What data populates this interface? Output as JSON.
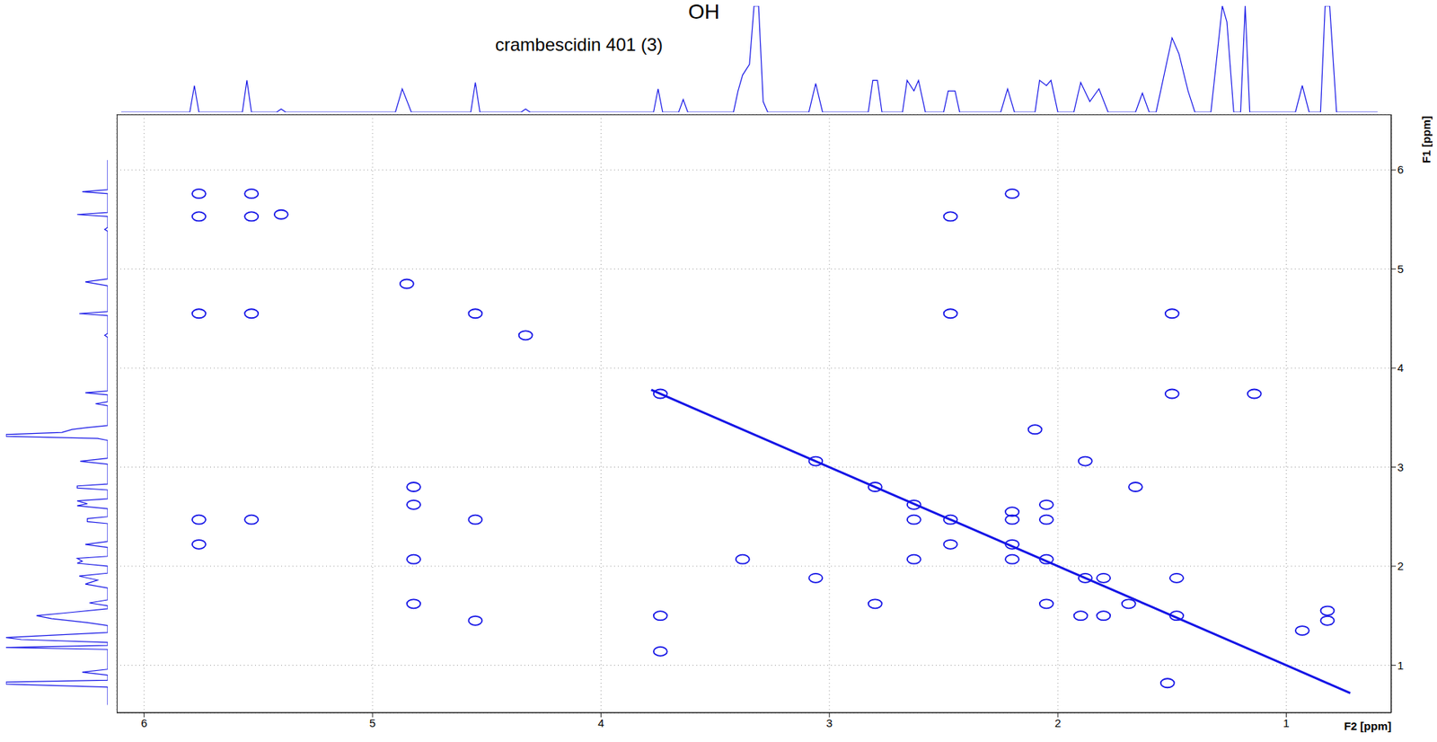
{
  "chart_data": [
    {
      "type": "scatter",
      "title": "crambescidin 401 (3)",
      "annotations": [
        "OH"
      ],
      "x_label": "F2 [ppm]",
      "y_label": "F1 [ppm]",
      "xlim": [
        6.12,
        0.54
      ],
      "ylim": [
        6.56,
        0.52
      ],
      "xticks": [
        6,
        5,
        4,
        3,
        2,
        1
      ],
      "yticks": [
        1,
        2,
        3,
        4,
        5,
        6
      ],
      "grid": true,
      "series": [
        {
          "type": "scatter",
          "marker": "ellipse",
          "color": "#1414e6",
          "x": [
            5.76,
            5.76,
            5.53,
            5.76,
            5.53,
            5.76,
            5.53,
            5.76,
            5.53,
            5.4,
            4.82,
            4.82,
            4.82,
            4.82,
            4.85,
            4.55,
            4.55,
            4.55,
            4.33,
            3.74,
            3.74,
            3.74,
            3.38,
            3.06,
            3.06,
            2.8,
            2.8,
            2.63,
            2.63,
            2.63,
            2.47,
            2.47,
            2.47,
            2.47,
            2.2,
            2.2,
            2.2,
            2.2,
            2.2,
            2.05,
            2.05,
            2.05,
            2.05,
            2.1,
            1.9,
            1.88,
            1.8,
            1.8,
            1.88,
            1.69,
            1.66,
            1.52,
            1.48,
            1.48,
            1.5,
            1.5,
            1.14,
            0.93,
            0.82,
            0.82
          ],
          "values": [
            2.22,
            2.47,
            2.47,
            4.55,
            4.55,
            5.53,
            5.53,
            5.76,
            5.76,
            5.55,
            1.62,
            2.07,
            2.62,
            2.8,
            4.85,
            1.45,
            2.47,
            4.55,
            4.33,
            1.14,
            1.5,
            3.74,
            2.07,
            1.88,
            3.06,
            1.62,
            2.8,
            2.07,
            2.47,
            2.62,
            2.22,
            2.47,
            4.55,
            5.53,
            2.07,
            2.22,
            2.47,
            2.55,
            5.76,
            1.62,
            2.07,
            2.47,
            2.62,
            3.38,
            1.5,
            1.88,
            1.88,
            1.5,
            3.06,
            1.62,
            2.8,
            0.82,
            1.5,
            1.88,
            3.74,
            4.55,
            3.74,
            1.35,
            1.45,
            1.55
          ]
        },
        {
          "type": "line",
          "color": "#1414e6",
          "x": [
            3.78,
            3.6,
            3.4,
            3.3,
            3.2,
            3.0,
            2.8,
            2.6,
            2.4,
            2.2,
            2.0,
            1.8,
            1.6,
            1.4,
            1.2,
            1.0,
            0.82,
            0.72
          ],
          "values": [
            3.78,
            3.6,
            3.4,
            3.3,
            3.2,
            3.0,
            2.8,
            2.6,
            2.4,
            2.2,
            2.0,
            1.8,
            1.6,
            1.4,
            1.2,
            1.0,
            0.82,
            0.72
          ]
        }
      ]
    },
    {
      "type": "line",
      "color": "#1414e6",
      "xlim": [
        6.12,
        0.54
      ],
      "ylim": [
        0,
        100
      ],
      "tick_labels": false,
      "x": [
        6.1,
        5.8,
        5.78,
        5.76,
        5.57,
        5.55,
        5.53,
        5.42,
        5.4,
        5.38,
        4.9,
        4.87,
        4.83,
        4.57,
        4.55,
        4.53,
        4.35,
        4.33,
        4.31,
        3.77,
        3.75,
        3.73,
        3.66,
        3.64,
        3.62,
        3.42,
        3.4,
        3.38,
        3.35,
        3.33,
        3.31,
        3.29,
        3.27,
        3.09,
        3.06,
        3.03,
        2.83,
        2.81,
        2.79,
        2.77,
        2.68,
        2.66,
        2.63,
        2.61,
        2.58,
        2.5,
        2.48,
        2.45,
        2.43,
        2.25,
        2.22,
        2.19,
        2.1,
        2.08,
        2.05,
        2.03,
        2.0,
        1.93,
        1.9,
        1.86,
        1.82,
        1.78,
        1.66,
        1.63,
        1.6,
        1.57,
        1.53,
        1.5,
        1.47,
        1.43,
        1.4,
        1.33,
        1.3,
        1.28,
        1.26,
        1.23,
        1.2,
        1.18,
        1.16,
        0.96,
        0.93,
        0.9,
        0.85,
        0.83,
        0.81,
        0.78,
        0.6
      ],
      "values": [
        0,
        0,
        25,
        0,
        0,
        30,
        0,
        0,
        3,
        0,
        0,
        22,
        0,
        0,
        28,
        0,
        0,
        3,
        0,
        0,
        22,
        0,
        0,
        12,
        0,
        0,
        20,
        35,
        45,
        100,
        100,
        10,
        0,
        0,
        27,
        0,
        0,
        30,
        30,
        0,
        0,
        30,
        20,
        30,
        0,
        0,
        20,
        20,
        0,
        0,
        22,
        0,
        0,
        30,
        25,
        30,
        0,
        0,
        28,
        10,
        22,
        0,
        0,
        18,
        0,
        0,
        40,
        70,
        55,
        20,
        0,
        0,
        60,
        100,
        85,
        0,
        0,
        100,
        0,
        0,
        25,
        0,
        0,
        100,
        100,
        0,
        0
      ]
    },
    {
      "type": "line",
      "color": "#1414e6",
      "xlim": [
        0.52,
        6.56
      ],
      "ylim": [
        0,
        100
      ],
      "tick_labels": false,
      "x": [
        6.1,
        5.8,
        5.78,
        5.76,
        5.57,
        5.55,
        5.53,
        5.42,
        5.4,
        5.38,
        4.9,
        4.87,
        4.83,
        4.57,
        4.55,
        4.53,
        4.35,
        4.33,
        4.31,
        3.77,
        3.75,
        3.73,
        3.66,
        3.64,
        3.62,
        3.42,
        3.4,
        3.38,
        3.35,
        3.33,
        3.31,
        3.29,
        3.27,
        3.09,
        3.06,
        3.03,
        2.83,
        2.81,
        2.79,
        2.77,
        2.68,
        2.66,
        2.63,
        2.61,
        2.58,
        2.5,
        2.48,
        2.45,
        2.43,
        2.25,
        2.22,
        2.19,
        2.1,
        2.08,
        2.05,
        2.03,
        2.0,
        1.93,
        1.9,
        1.86,
        1.82,
        1.78,
        1.66,
        1.63,
        1.6,
        1.57,
        1.53,
        1.5,
        1.47,
        1.43,
        1.4,
        1.33,
        1.3,
        1.28,
        1.26,
        1.23,
        1.2,
        1.18,
        1.16,
        0.96,
        0.93,
        0.9,
        0.85,
        0.83,
        0.81,
        0.78,
        0.6
      ],
      "values": [
        0,
        0,
        25,
        0,
        0,
        30,
        0,
        0,
        3,
        0,
        0,
        22,
        0,
        0,
        28,
        0,
        0,
        3,
        0,
        0,
        22,
        0,
        0,
        12,
        0,
        0,
        20,
        35,
        45,
        100,
        100,
        10,
        0,
        0,
        27,
        0,
        0,
        30,
        30,
        0,
        0,
        30,
        20,
        30,
        0,
        0,
        20,
        20,
        0,
        0,
        22,
        0,
        0,
        30,
        25,
        30,
        0,
        0,
        28,
        10,
        22,
        0,
        0,
        18,
        0,
        0,
        40,
        70,
        55,
        20,
        0,
        0,
        60,
        100,
        85,
        0,
        0,
        100,
        0,
        0,
        25,
        0,
        0,
        100,
        100,
        0,
        0
      ]
    }
  ]
}
